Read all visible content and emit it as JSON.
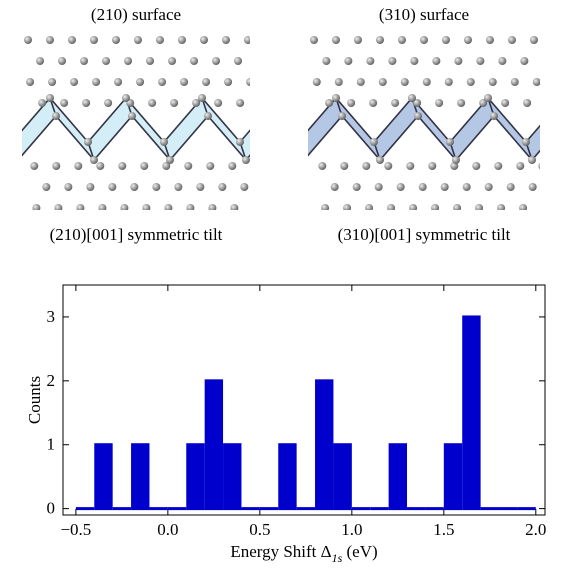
{
  "panels": [
    {
      "title": "(210) surface",
      "caption": "(210)[001] symmetric tilt",
      "band_color": "#d4eef8"
    },
    {
      "title": "(310) surface",
      "caption": "(310)[001] symmetric tilt",
      "band_color": "#b4c8e6"
    }
  ],
  "chart_data": {
    "type": "histogram",
    "bins": [
      -0.5,
      -0.4,
      -0.3,
      -0.2,
      -0.1,
      0.0,
      0.1,
      0.2,
      0.3,
      0.4,
      0.5,
      0.6,
      0.7,
      0.8,
      0.9,
      1.0,
      1.1,
      1.2,
      1.3,
      1.4,
      1.5,
      1.6,
      1.7,
      1.8,
      1.9,
      2.0
    ],
    "values": [
      0,
      1,
      0,
      1,
      0,
      0,
      1,
      2,
      1,
      0,
      0,
      1,
      0,
      2,
      1,
      0,
      0,
      1,
      0,
      0,
      1,
      3,
      0,
      0,
      0
    ],
    "color": "#0000cc",
    "xlim": [
      -0.57,
      2.05
    ],
    "ylim": [
      -0.1,
      3.5
    ],
    "xticks": [
      {
        "value": -0.5,
        "label": "−0.5"
      },
      {
        "value": 0.0,
        "label": "0.0"
      },
      0.5,
      {
        "value": 1.0,
        "label": "1.0"
      },
      1.5,
      {
        "value": 2.0,
        "label": "2.0"
      }
    ],
    "yticks": [
      0,
      1,
      2,
      3
    ],
    "x_label": [
      "Energy Shift Δ",
      "1s",
      " (eV)"
    ],
    "y_label": "Counts"
  }
}
